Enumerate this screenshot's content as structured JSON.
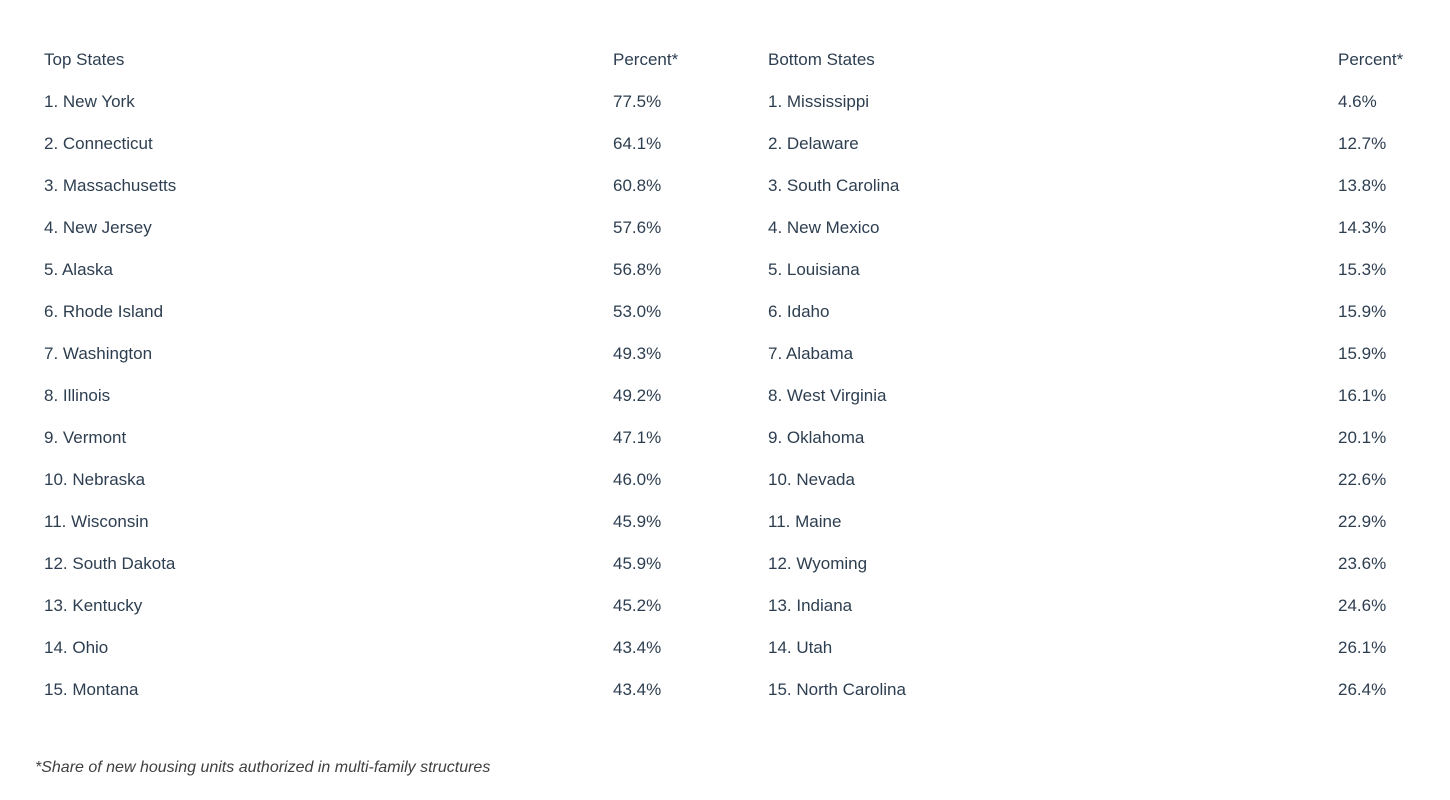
{
  "chart_data": [
    {
      "type": "table",
      "name_header": "Top States",
      "percent_header": "Percent*",
      "rows": [
        {
          "rank": "1.",
          "state": "New York",
          "percent": "77.5%",
          "value": 77.5
        },
        {
          "rank": "2.",
          "state": "Connecticut",
          "percent": "64.1%",
          "value": 64.1
        },
        {
          "rank": "3.",
          "state": "Massachusetts",
          "percent": "60.8%",
          "value": 60.8
        },
        {
          "rank": "4.",
          "state": "New Jersey",
          "percent": "57.6%",
          "value": 57.6
        },
        {
          "rank": "5.",
          "state": "Alaska",
          "percent": "56.8%",
          "value": 56.8
        },
        {
          "rank": "6.",
          "state": "Rhode Island",
          "percent": "53.0%",
          "value": 53.0
        },
        {
          "rank": "7.",
          "state": "Washington",
          "percent": "49.3%",
          "value": 49.3
        },
        {
          "rank": "8.",
          "state": "Illinois",
          "percent": "49.2%",
          "value": 49.2
        },
        {
          "rank": "9.",
          "state": "Vermont",
          "percent": "47.1%",
          "value": 47.1
        },
        {
          "rank": "10.",
          "state": "Nebraska",
          "percent": "46.0%",
          "value": 46.0
        },
        {
          "rank": "11.",
          "state": "Wisconsin",
          "percent": "45.9%",
          "value": 45.9
        },
        {
          "rank": "12.",
          "state": "South Dakota",
          "percent": "45.9%",
          "value": 45.9
        },
        {
          "rank": "13.",
          "state": "Kentucky",
          "percent": "45.2%",
          "value": 45.2
        },
        {
          "rank": "14.",
          "state": "Ohio",
          "percent": "43.4%",
          "value": 43.4
        },
        {
          "rank": "15.",
          "state": "Montana",
          "percent": "43.4%",
          "value": 43.4
        }
      ]
    },
    {
      "type": "table",
      "name_header": "Bottom States",
      "percent_header": "Percent*",
      "rows": [
        {
          "rank": "1.",
          "state": "Mississippi",
          "percent": "4.6%",
          "value": 4.6
        },
        {
          "rank": "2.",
          "state": "Delaware",
          "percent": "12.7%",
          "value": 12.7
        },
        {
          "rank": "3.",
          "state": "South Carolina",
          "percent": "13.8%",
          "value": 13.8
        },
        {
          "rank": "4.",
          "state": "New Mexico",
          "percent": "14.3%",
          "value": 14.3
        },
        {
          "rank": "5.",
          "state": "Louisiana",
          "percent": "15.3%",
          "value": 15.3
        },
        {
          "rank": "6.",
          "state": "Idaho",
          "percent": "15.9%",
          "value": 15.9
        },
        {
          "rank": "7.",
          "state": "Alabama",
          "percent": "15.9%",
          "value": 15.9
        },
        {
          "rank": "8.",
          "state": "West Virginia",
          "percent": "16.1%",
          "value": 16.1
        },
        {
          "rank": "9.",
          "state": "Oklahoma",
          "percent": "20.1%",
          "value": 20.1
        },
        {
          "rank": "10.",
          "state": "Nevada",
          "percent": "22.6%",
          "value": 22.6
        },
        {
          "rank": "11.",
          "state": "Maine",
          "percent": "22.9%",
          "value": 22.9
        },
        {
          "rank": "12.",
          "state": "Wyoming",
          "percent": "23.6%",
          "value": 23.6
        },
        {
          "rank": "13.",
          "state": "Indiana",
          "percent": "24.6%",
          "value": 24.6
        },
        {
          "rank": "14.",
          "state": "Utah",
          "percent": "26.1%",
          "value": 26.1
        },
        {
          "rank": "15.",
          "state": "North Carolina",
          "percent": "26.4%",
          "value": 26.4
        }
      ]
    }
  ],
  "footnote": "*Share of new housing units authorized in multi-family structures",
  "colors": {
    "text": "#2d3e50",
    "footnote": "#404040",
    "background": "#ffffff"
  }
}
